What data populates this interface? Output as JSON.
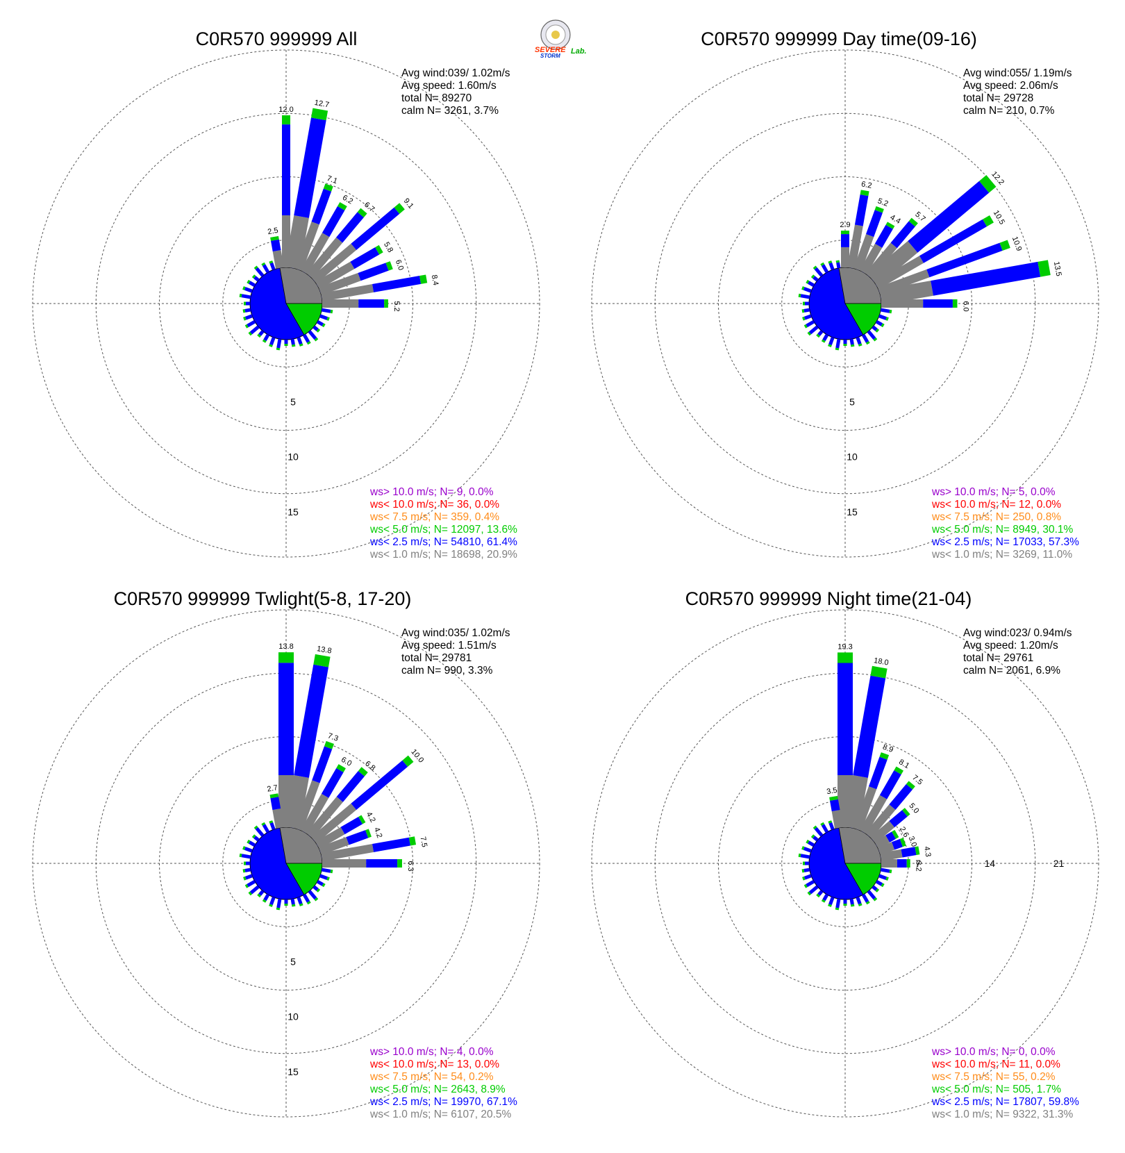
{
  "colors": {
    "gt10": "#9900cc",
    "lt10": "#ff0000",
    "lt75": "#ff8c1a",
    "lt50": "#00cc00",
    "lt25": "#0000ff",
    "lt10ms": "#808080"
  },
  "logo": {
    "text1": "SEVERE",
    "text2": "STORM",
    "text3": "Lab."
  },
  "chart_data": [
    {
      "type": "polar-bar",
      "title": "C0R570 999999 All",
      "stats": {
        "avg_wind": "Avg wind:039/ 1.02m/s",
        "avg_speed": "Avg speed: 1.60m/s",
        "total": "total N=     89270",
        "calm": "calm N=   3261,   3.7%"
      },
      "radial_labels": [
        "5",
        "10",
        "15"
      ],
      "rmax": 20,
      "calm_pct": 3.7,
      "sectors": [
        {
          "dir": 0,
          "total": 12.0,
          "label": "12.0"
        },
        {
          "dir": 10,
          "total": 12.7,
          "label": "12.7"
        },
        {
          "dir": 20,
          "total": 7.1,
          "label": "7.1"
        },
        {
          "dir": 30,
          "total": 6.2,
          "label": "6.2"
        },
        {
          "dir": 40,
          "total": 6.7,
          "label": "6.7"
        },
        {
          "dir": 50,
          "total": 9.1,
          "label": "9.1"
        },
        {
          "dir": 60,
          "total": 5.8,
          "label": "5.8"
        },
        {
          "dir": 70,
          "total": 6.0,
          "label": "6.0"
        },
        {
          "dir": 80,
          "total": 8.4,
          "label": "8.4"
        },
        {
          "dir": 90,
          "total": 5.2,
          "label": "5.2"
        },
        {
          "dir": 350,
          "total": 2.5,
          "label": "2.5"
        }
      ],
      "legend": [
        {
          "text": "ws> 10.0 m/s; N=    9,  0.0%",
          "color": "#9900cc"
        },
        {
          "text": "ws< 10.0 m/s; N=   36,  0.0%",
          "color": "#ff0000"
        },
        {
          "text": "ws<  7.5 m/s; N=  359,  0.4%",
          "color": "#ff8c1a"
        },
        {
          "text": "ws<  5.0 m/s; N= 12097, 13.6%",
          "color": "#00cc00"
        },
        {
          "text": "ws<  2.5 m/s; N= 54810, 61.4%",
          "color": "#0000ff"
        },
        {
          "text": "ws<  1.0 m/s; N= 18698, 20.9%",
          "color": "#808080"
        }
      ]
    },
    {
      "type": "polar-bar",
      "title": "C0R570 999999 Day time(09-16)",
      "stats": {
        "avg_wind": "Avg wind:055/ 1.19m/s",
        "avg_speed": "Avg speed: 2.06m/s",
        "total": "total N=     29728",
        "calm": "calm N=    210,   0.7%"
      },
      "radial_labels": [
        "5",
        "10",
        "15"
      ],
      "rmax": 20,
      "calm_pct": 0.7,
      "sectors": [
        {
          "dir": 0,
          "total": 2.9,
          "label": "2.9"
        },
        {
          "dir": 10,
          "total": 6.2,
          "label": "6.2"
        },
        {
          "dir": 20,
          "total": 5.2,
          "label": "5.2"
        },
        {
          "dir": 30,
          "total": 4.4,
          "label": "4.4"
        },
        {
          "dir": 40,
          "total": 5.7,
          "label": "5.7"
        },
        {
          "dir": 50,
          "total": 12.2,
          "label": "12.2"
        },
        {
          "dir": 60,
          "total": 10.5,
          "label": "10.5"
        },
        {
          "dir": 70,
          "total": 10.9,
          "label": "10.9"
        },
        {
          "dir": 80,
          "total": 13.5,
          "label": "13.5"
        },
        {
          "dir": 90,
          "total": 6.0,
          "label": "6.0"
        }
      ],
      "legend": [
        {
          "text": "ws> 10.0 m/s; N=    5,  0.0%",
          "color": "#9900cc"
        },
        {
          "text": "ws< 10.0 m/s; N=   12,  0.0%",
          "color": "#ff0000"
        },
        {
          "text": "ws<  7.5 m/s; N=  250,  0.8%",
          "color": "#ff8c1a"
        },
        {
          "text": "ws<  5.0 m/s; N=  8949, 30.1%",
          "color": "#00cc00"
        },
        {
          "text": "ws<  2.5 m/s; N= 17033, 57.3%",
          "color": "#0000ff"
        },
        {
          "text": "ws<  1.0 m/s; N=  3269, 11.0%",
          "color": "#808080"
        }
      ]
    },
    {
      "type": "polar-bar",
      "title": "C0R570 999999 Twlight(5-8, 17-20)",
      "stats": {
        "avg_wind": "Avg wind:035/ 1.02m/s",
        "avg_speed": "Avg speed: 1.51m/s",
        "total": "total N=     29781",
        "calm": "calm N=    990,   3.3%"
      },
      "radial_labels": [
        "5",
        "10",
        "15"
      ],
      "rmax": 20,
      "calm_pct": 3.3,
      "sectors": [
        {
          "dir": 0,
          "total": 13.8,
          "label": "13.8"
        },
        {
          "dir": 10,
          "total": 13.8,
          "label": "13.8"
        },
        {
          "dir": 20,
          "total": 7.3,
          "label": "7.3"
        },
        {
          "dir": 30,
          "total": 6.0,
          "label": "6.0"
        },
        {
          "dir": 40,
          "total": 6.8,
          "label": "6.8"
        },
        {
          "dir": 50,
          "total": 10.0,
          "label": "10.0"
        },
        {
          "dir": 60,
          "total": 4.2,
          "label": "4.2"
        },
        {
          "dir": 70,
          "total": 4.2,
          "label": "4.2"
        },
        {
          "dir": 80,
          "total": 7.5,
          "label": "7.5"
        },
        {
          "dir": 90,
          "total": 6.3,
          "label": "6.3"
        },
        {
          "dir": 350,
          "total": 2.7,
          "label": "2.7"
        }
      ],
      "legend": [
        {
          "text": "ws> 10.0 m/s; N=    4,  0.0%",
          "color": "#9900cc"
        },
        {
          "text": "ws< 10.0 m/s; N=   13,  0.0%",
          "color": "#ff0000"
        },
        {
          "text": "ws<  7.5 m/s; N=   54,  0.2%",
          "color": "#ff8c1a"
        },
        {
          "text": "ws<  5.0 m/s; N=  2643,  8.9%",
          "color": "#00cc00"
        },
        {
          "text": "ws<  2.5 m/s; N= 19970, 67.1%",
          "color": "#0000ff"
        },
        {
          "text": "ws<  1.0 m/s; N=  6107, 20.5%",
          "color": "#808080"
        }
      ]
    },
    {
      "type": "polar-bar",
      "title": "C0R570 999999 Night time(21-04)",
      "stats": {
        "avg_wind": "Avg wind:023/ 0.94m/s",
        "avg_speed": "Avg speed: 1.20m/s",
        "total": "total N=     29761",
        "calm": "calm N=   2061,   6.9%"
      },
      "radial_labels": [
        "7",
        "14",
        "21"
      ],
      "rmax": 28,
      "calm_pct": 6.9,
      "sectors": [
        {
          "dir": 0,
          "total": 19.3,
          "label": "19.3"
        },
        {
          "dir": 10,
          "total": 18.0,
          "label": "18.0"
        },
        {
          "dir": 20,
          "total": 8.9,
          "label": "8.9"
        },
        {
          "dir": 30,
          "total": 8.1,
          "label": "8.1"
        },
        {
          "dir": 40,
          "total": 7.5,
          "label": "7.5"
        },
        {
          "dir": 50,
          "total": 5.0,
          "label": "5.0"
        },
        {
          "dir": 60,
          "total": 2.6,
          "label": "2.6"
        },
        {
          "dir": 70,
          "total": 3.0,
          "label": "3.0"
        },
        {
          "dir": 80,
          "total": 4.3,
          "label": "4.3"
        },
        {
          "dir": 90,
          "total": 3.2,
          "label": "3.2"
        },
        {
          "dir": 350,
          "total": 3.5,
          "label": "3.5"
        }
      ],
      "legend": [
        {
          "text": "ws> 10.0 m/s; N=    0,  0.0%",
          "color": "#9900cc"
        },
        {
          "text": "ws< 10.0 m/s; N=   11,  0.0%",
          "color": "#ff0000"
        },
        {
          "text": "ws<  7.5 m/s; N=   55,  0.2%",
          "color": "#ff8c1a"
        },
        {
          "text": "ws<  5.0 m/s; N=   505,  1.7%",
          "color": "#00cc00"
        },
        {
          "text": "ws<  2.5 m/s; N= 17807, 59.8%",
          "color": "#0000ff"
        },
        {
          "text": "ws<  1.0 m/s; N=  9322, 31.3%",
          "color": "#808080"
        }
      ]
    }
  ]
}
